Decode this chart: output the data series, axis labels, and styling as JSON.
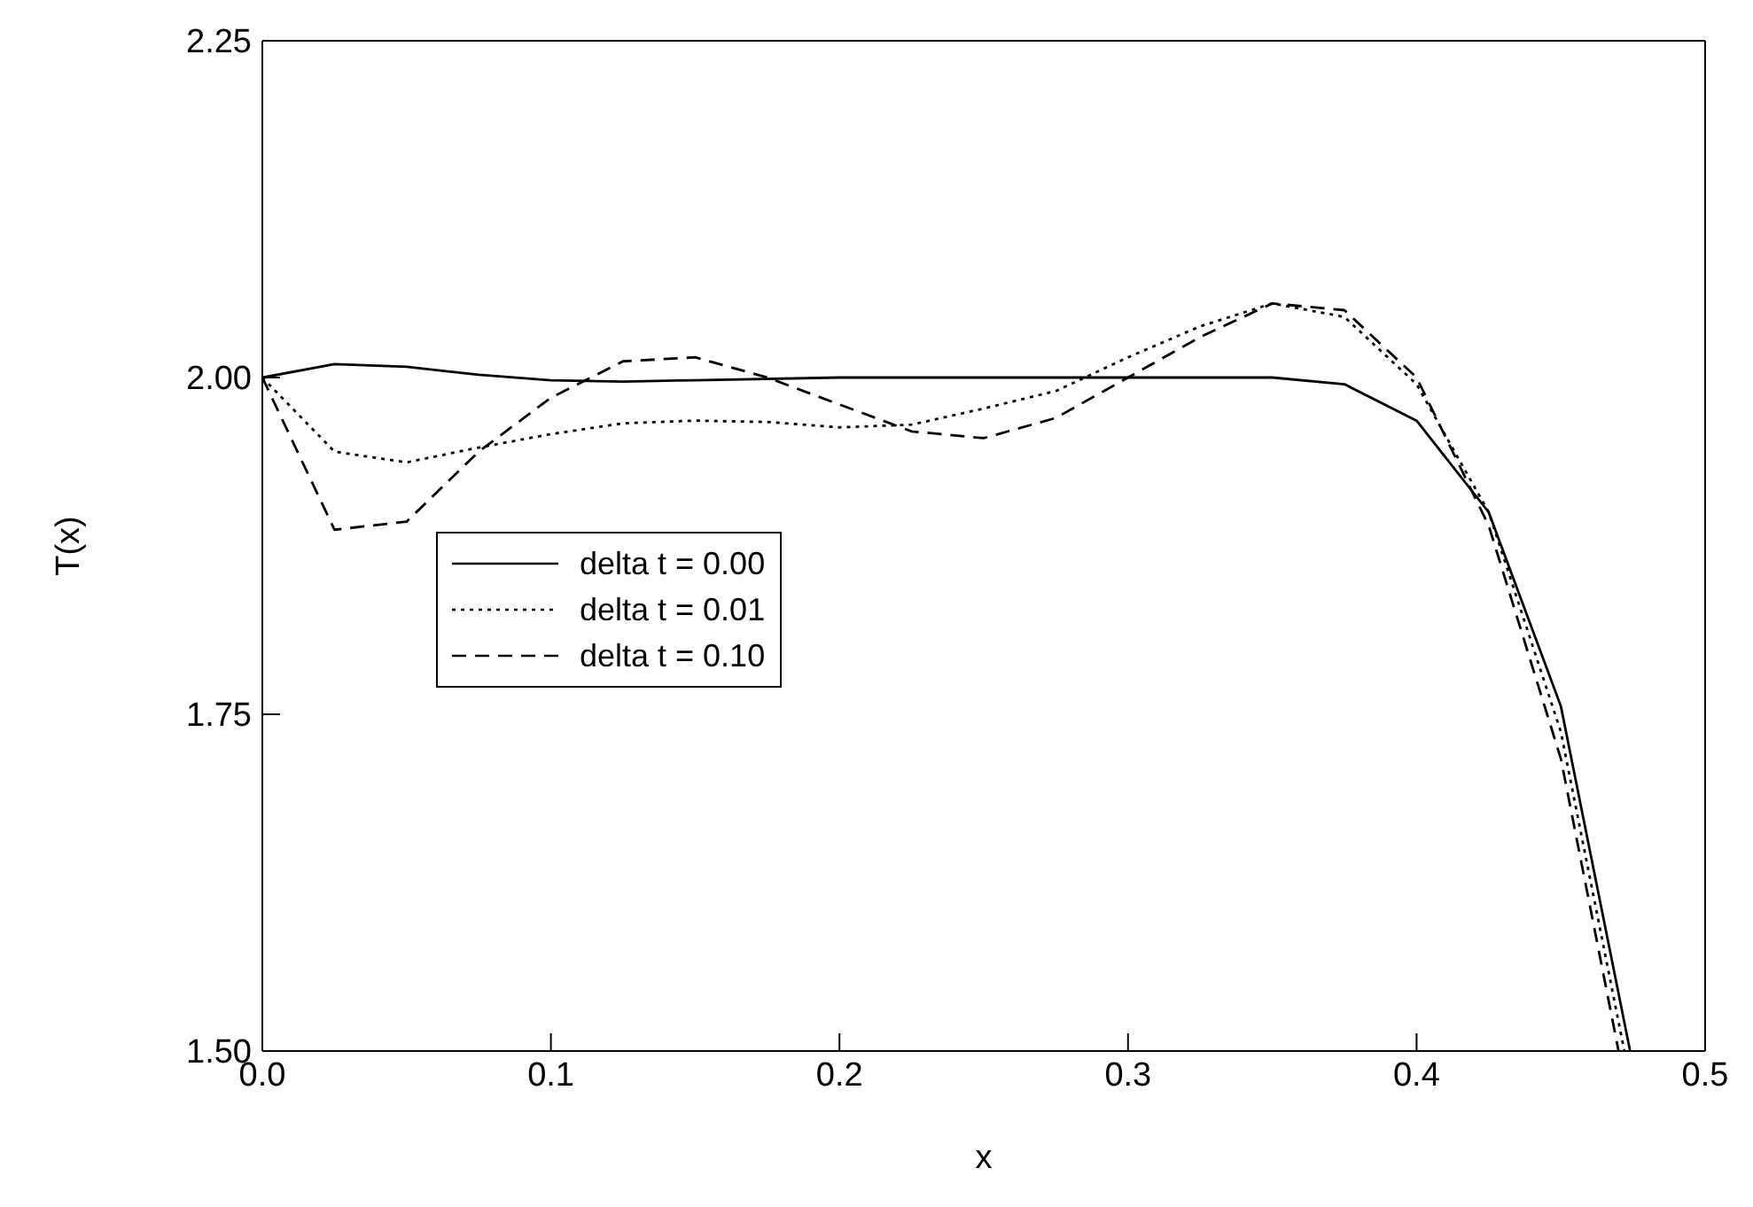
{
  "chart_data": {
    "type": "line",
    "xlabel": "x",
    "ylabel": "T(x)",
    "xlim": [
      0,
      0.5
    ],
    "ylim": [
      1.5,
      2.25
    ],
    "xticks": [
      {
        "value": 0,
        "label": "0.0"
      },
      {
        "value": 0.1,
        "label": "0.1"
      },
      {
        "value": 0.2,
        "label": "0.2"
      },
      {
        "value": 0.3,
        "label": "0.3"
      },
      {
        "value": 0.4,
        "label": "0.4"
      },
      {
        "value": 0.5,
        "label": "0.5"
      }
    ],
    "yticks": [
      {
        "value": 1.5,
        "label": "1.50"
      },
      {
        "value": 1.75,
        "label": "1.75"
      },
      {
        "value": 2,
        "label": "2.00"
      },
      {
        "value": 2.25,
        "label": "2.25"
      }
    ],
    "grid": false,
    "legend": "left",
    "marker": "none",
    "series": [
      {
        "name": "delta t = 0.00",
        "color": "#000000",
        "line_style": "solid",
        "x": [
          0,
          0.025,
          0.05,
          0.075,
          0.1,
          0.125,
          0.15,
          0.2,
          0.25,
          0.3,
          0.35,
          0.375,
          0.4,
          0.425,
          0.45,
          0.474
        ],
        "values": [
          2.0,
          2.01,
          2.008,
          2.002,
          1.998,
          1.997,
          1.998,
          2.0,
          2.0,
          2.0,
          2.0,
          1.995,
          1.968,
          1.9,
          1.756,
          1.5
        ]
      },
      {
        "name": "delta t = 0.01",
        "color": "#000000",
        "line_style": "dotted",
        "x": [
          0,
          0.025,
          0.05,
          0.075,
          0.1,
          0.125,
          0.15,
          0.175,
          0.2,
          0.225,
          0.25,
          0.275,
          0.3,
          0.325,
          0.35,
          0.375,
          0.4,
          0.425,
          0.45,
          0.472
        ],
        "values": [
          2.0,
          1.945,
          1.937,
          1.948,
          1.958,
          1.966,
          1.968,
          1.967,
          1.963,
          1.965,
          1.977,
          1.99,
          2.015,
          2.038,
          2.055,
          2.045,
          1.995,
          1.9,
          1.737,
          1.5
        ]
      },
      {
        "name": "delta t = 0.10",
        "color": "#000000",
        "line_style": "dashed",
        "x": [
          0,
          0.025,
          0.05,
          0.075,
          0.1,
          0.125,
          0.15,
          0.175,
          0.2,
          0.225,
          0.25,
          0.275,
          0.3,
          0.325,
          0.35,
          0.375,
          0.4,
          0.425,
          0.45,
          0.47
        ],
        "values": [
          2.0,
          1.887,
          1.893,
          1.945,
          1.985,
          2.012,
          2.015,
          2.0,
          1.98,
          1.96,
          1.955,
          1.97,
          2.0,
          2.03,
          2.055,
          2.05,
          2.0,
          1.89,
          1.717,
          1.5
        ]
      }
    ]
  }
}
